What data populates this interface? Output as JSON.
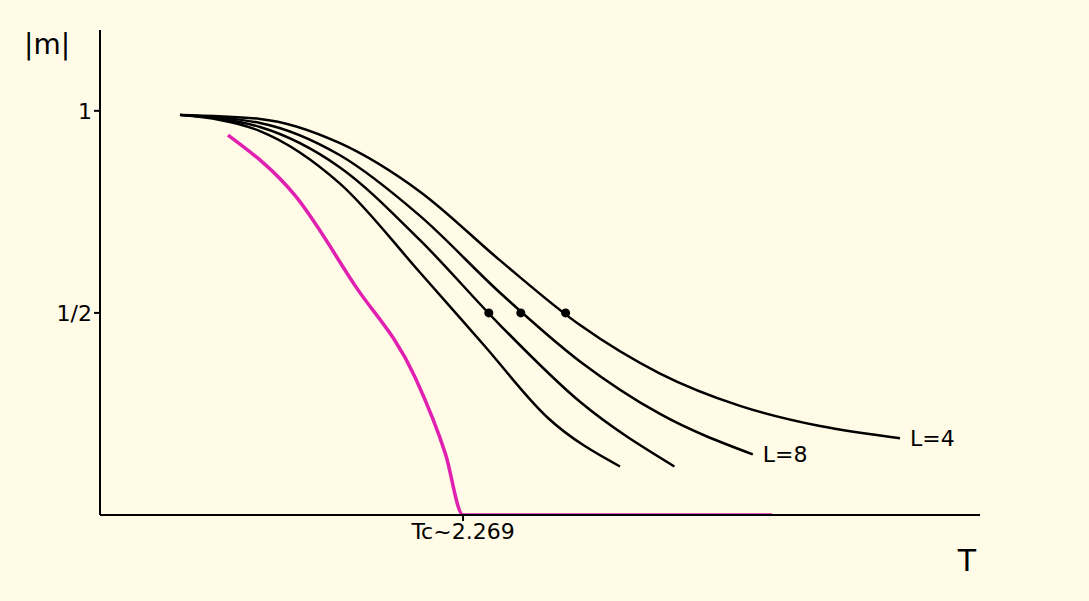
{
  "chart_data": {
    "type": "line",
    "x_label": "T",
    "y_label": "|m|",
    "xlim": [
      0,
      5.5
    ],
    "ylim": [
      0,
      1.2
    ],
    "xticks": [
      {
        "value": 2.269,
        "label": "Tc~2.269"
      }
    ],
    "yticks": [
      {
        "value": 0.5,
        "label": "1/2"
      },
      1
    ],
    "grid": false,
    "series": [
      {
        "type": "line",
        "color": "#000000",
        "marker": "none",
        "line_style": "solid",
        "x": [
          0.5,
          1.0,
          1.5,
          2.0,
          2.4,
          2.8,
          3.25
        ],
        "values": [
          0.99,
          0.95,
          0.82,
          0.6,
          0.42,
          0.24,
          0.12
        ]
      },
      {
        "type": "line",
        "color": "#000000",
        "marker": "none",
        "line_style": "solid",
        "x": [
          0.5,
          1.0,
          1.5,
          2.0,
          2.5,
          3.0,
          3.59
        ],
        "values": [
          0.99,
          0.96,
          0.86,
          0.68,
          0.47,
          0.28,
          0.12
        ]
      },
      {
        "name": "L=8",
        "type": "line",
        "color": "#000000",
        "marker": "none",
        "line_style": "solid",
        "x": [
          0.5,
          1.0,
          1.5,
          2.0,
          2.5,
          3.0,
          3.5,
          4.08
        ],
        "values": [
          0.99,
          0.97,
          0.89,
          0.74,
          0.55,
          0.38,
          0.25,
          0.15
        ]
      },
      {
        "name": "L=4",
        "type": "line",
        "color": "#000000",
        "marker": "none",
        "line_style": "solid",
        "x": [
          0.5,
          1.0,
          1.5,
          2.0,
          2.5,
          3.0,
          3.5,
          4.0,
          4.5,
          5.0
        ],
        "values": [
          0.99,
          0.98,
          0.92,
          0.8,
          0.63,
          0.47,
          0.35,
          0.27,
          0.22,
          0.19
        ]
      },
      {
        "type": "line",
        "color": "#e020b0",
        "marker": "none",
        "line_style": "solid",
        "x": [
          0.8,
          1.22,
          1.59,
          1.97,
          2.16,
          2.269,
          3.0,
          4.2
        ],
        "values": [
          0.94,
          0.79,
          0.57,
          0.34,
          0.15,
          0,
          0,
          0
        ]
      },
      {
        "type": "scatter",
        "color": "#000000",
        "marker": "circle",
        "x": [
          2.43,
          2.63,
          2.91
        ],
        "values": [
          0.5,
          0.5,
          0.5
        ]
      }
    ]
  }
}
